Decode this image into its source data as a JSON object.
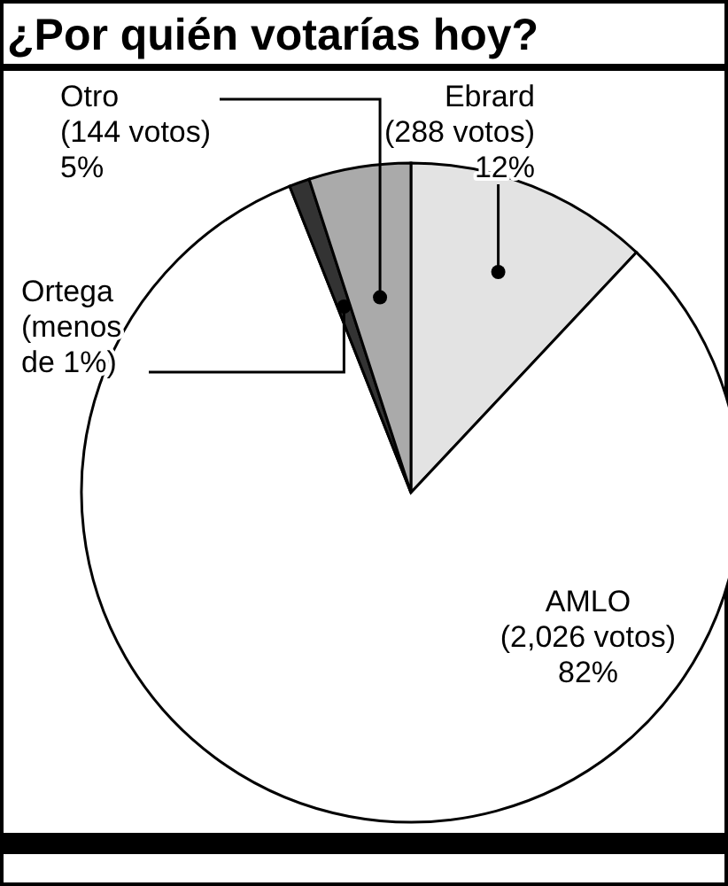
{
  "chart_data": {
    "type": "pie",
    "title": "¿Por quién votarías hoy?",
    "categories": [
      "Ebrard",
      "AMLO",
      "Ortega",
      "Otro"
    ],
    "values": [
      12,
      82,
      1,
      5
    ],
    "colors": [
      "#e3e3e3",
      "#ffffff",
      "#333333",
      "#aaaaaa"
    ],
    "value_labels": [
      "(288 votos)\n12%",
      "(2,026 votos)\n82%",
      "(menos\nde 1%)",
      "(144 votos)\n5%"
    ]
  }
}
